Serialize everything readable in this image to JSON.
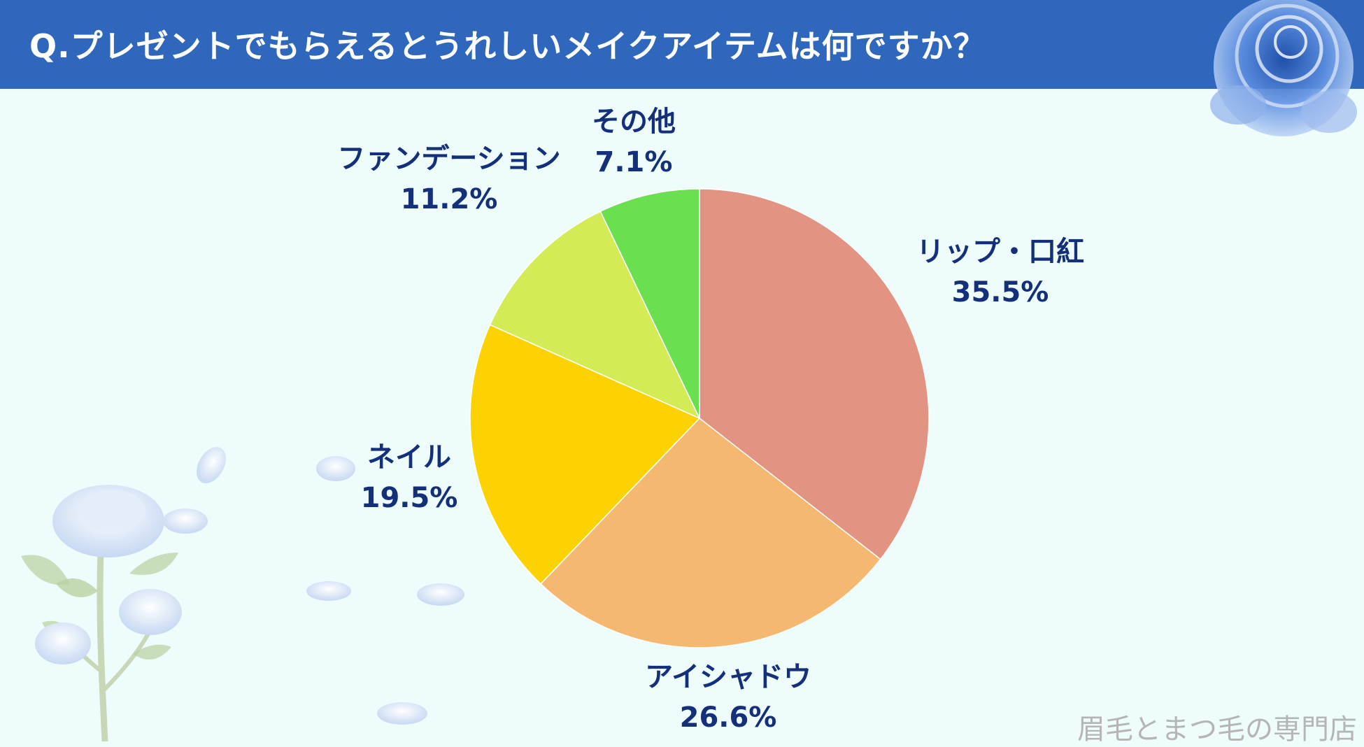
{
  "title": "Q.プレゼントでもらえるとうれしいメイクアイテムは何ですか？",
  "watermark": "眉毛とまつ毛の専門店",
  "colors": {
    "banner": "#2f67bd",
    "background": "#effcfc",
    "label": "#14307a"
  },
  "chart_data": {
    "type": "pie",
    "slices": [
      {
        "label": "リップ・口紅",
        "value": 35.5,
        "display": "35.5%",
        "color": "#e39382"
      },
      {
        "label": "アイシャドウ",
        "value": 26.6,
        "display": "26.6%",
        "color": "#f5b870"
      },
      {
        "label": "ネイル",
        "value": 19.5,
        "display": "19.5%",
        "color": "#fdd202"
      },
      {
        "label": "ファンデーション",
        "value": 11.2,
        "display": "11.2%",
        "color": "#d3ec56"
      },
      {
        "label": "その他",
        "value": 7.1,
        "display": "7.1%",
        "color": "#6ae050"
      }
    ]
  }
}
